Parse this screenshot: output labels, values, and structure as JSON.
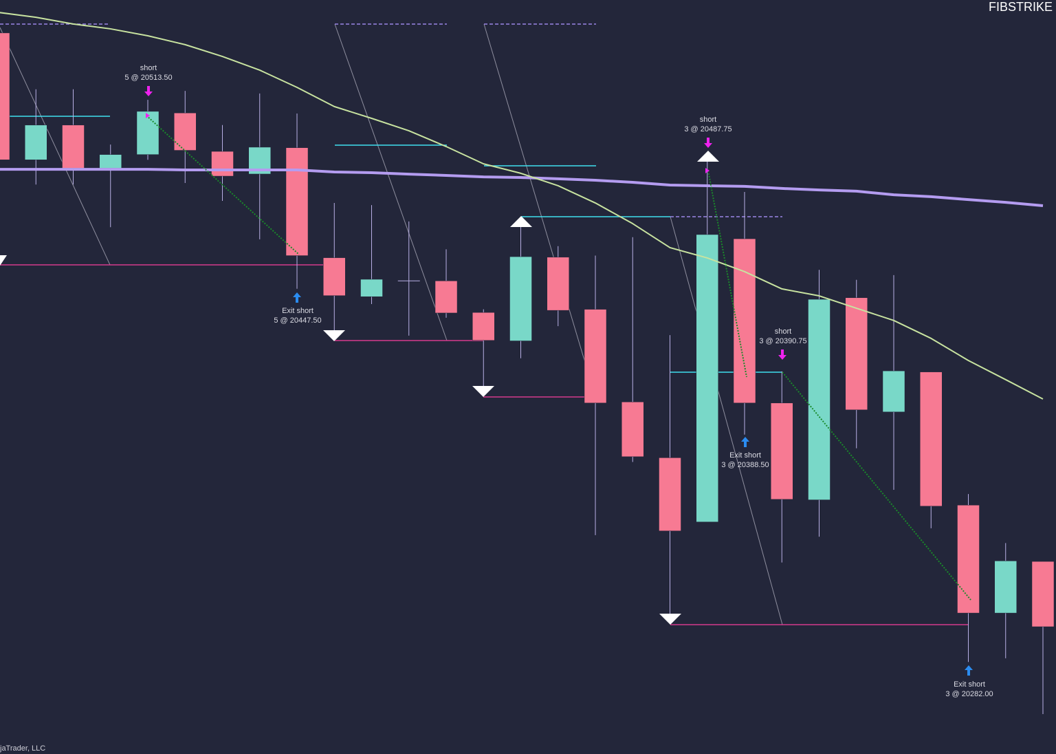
{
  "chart_data": {
    "type": "candlestick",
    "title": "FIBSTRIKE",
    "footer": "jaTrader, LLC",
    "up_color": "#79d8c8",
    "down_color": "#f77a93",
    "wick_color": "#b9b0e6",
    "ylim": [
      20210.3,
      20568.4
    ],
    "open": [
      20552.75,
      20492.5,
      20509,
      20488.5,
      20495,
      20514.75,
      20496.5,
      20485.75,
      20498.25,
      20446,
      20427.5,
      20435,
      20435,
      20420,
      20406.5,
      20446.25,
      20421.5,
      20377.5,
      20351,
      20320.5,
      20455,
      20377,
      20331,
      20427,
      20372.75,
      20391.75,
      20328.5,
      20277.25,
      20301.75
    ],
    "high": [
      20555.25,
      20526,
      20526,
      20499.75,
      20521,
      20525.25,
      20509,
      20524,
      20514.5,
      20472,
      20471,
      20463.25,
      20450,
      20421.5,
      20465.5,
      20451.5,
      20447,
      20455.75,
      20409.25,
      20493.25,
      20477.25,
      20392,
      20440.25,
      20435.5,
      20437.75,
      20391.75,
      20333.75,
      20310.5,
      20301.75
    ],
    "low": [
      20490,
      20480.75,
      20480.75,
      20460.5,
      20492.5,
      20481.5,
      20473,
      20454.75,
      20431.25,
      20410,
      20424,
      20409,
      20417.5,
      20383.75,
      20398.25,
      20413.5,
      20314.25,
      20349,
      20272.75,
      20320.5,
      20362,
      20301.25,
      20313.5,
      20355.5,
      20335.75,
      20317.5,
      20254,
      20255.75,
      20229.25
    ],
    "close": [
      20492.5,
      20509,
      20488.5,
      20495,
      20515.5,
      20497,
      20484.75,
      20498.5,
      20447,
      20428,
      20435.75,
      20435,
      20419.75,
      20406.75,
      20446.5,
      20421,
      20377,
      20351.5,
      20316.25,
      20457,
      20377,
      20331.25,
      20426.25,
      20373.75,
      20392.25,
      20328,
      20277.25,
      20302,
      20270.75
    ],
    "series": [
      {
        "color": "#b49cf0",
        "values": [
          20488.0,
          20488.0,
          20488.0,
          20488.0,
          20488.0,
          20487.7,
          20487.7,
          20487.7,
          20487.7,
          20486.7,
          20486.4,
          20485.7,
          20485.1,
          20484.4,
          20484.1,
          20483.5,
          20482.8,
          20481.8,
          20480.5,
          20480.2,
          20479.9,
          20478.9,
          20478.2,
          20477.6,
          20475.9,
          20475.0,
          20473.6,
          20472.3,
          20470.7
        ]
      },
      {
        "color": "#c8e3a0",
        "values": [
          20562.5,
          20560.2,
          20557.0,
          20554.7,
          20551.4,
          20547.2,
          20541.6,
          20535.1,
          20526.9,
          20517.8,
          20512.2,
          20506.3,
          20498.8,
          20490.6,
          20486.1,
          20480.2,
          20472.0,
          20462.2,
          20450.8,
          20445.9,
          20439.4,
          20431.2,
          20427.9,
          20422.0,
          20416.2,
          20407.7,
          20397.2,
          20388.1,
          20378.9
        ]
      }
    ],
    "annotations": [
      {
        "label": "short",
        "detail": "5 @ 20513.50"
      },
      {
        "label": "Exit short",
        "detail": "5 @ 20447.50"
      },
      {
        "label": "short",
        "detail": "3 @ 20487.75"
      },
      {
        "label": "Exit short",
        "detail": "3 @ 20388.50"
      },
      {
        "label": "short",
        "detail": "3 @ 20390.75"
      },
      {
        "label": "Exit short",
        "detail": "3 @ 20282.00"
      }
    ]
  }
}
